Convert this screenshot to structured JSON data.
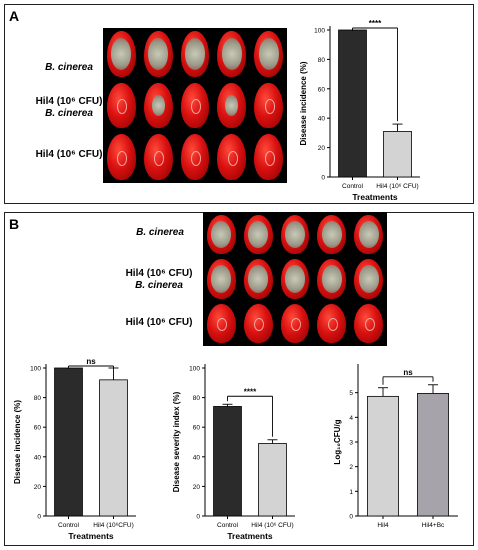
{
  "panels": {
    "a": {
      "letter": "A",
      "rows": [
        {
          "line1": "B. cinerea",
          "line2": "",
          "italic1": true
        },
        {
          "line1": "Hil4 (10⁶ CFU)",
          "line2": "B. cinerea",
          "italic1": false
        },
        {
          "line1": "Hil4 (10⁶ CFU)",
          "line2": "",
          "italic1": false
        }
      ]
    },
    "b": {
      "letter": "B",
      "rows": [
        {
          "line1": "B. cinerea",
          "line2": "",
          "italic1": true
        },
        {
          "line1": "Hil4 (10⁶ CFU)",
          "line2": "B. cinerea",
          "italic1": false
        },
        {
          "line1": "Hil4 (10⁶ CFU)",
          "line2": "",
          "italic1": false
        }
      ]
    }
  },
  "chart_data": [
    {
      "id": "a-incidence",
      "type": "bar",
      "categories": [
        "Control",
        "Hil4 (10⁶ CFU)"
      ],
      "values": [
        100,
        31
      ],
      "errors": [
        0,
        5
      ],
      "colors": [
        "#2b2b2b",
        "#d3d3d3"
      ],
      "ylim": [
        0,
        100
      ],
      "yticks": [
        0,
        20,
        40,
        60,
        80,
        100
      ],
      "ylabel": "Disease incidence (%)",
      "xlabel": "Treatments",
      "annotation": "****"
    },
    {
      "id": "b-incidence",
      "type": "bar",
      "categories": [
        "Control",
        "Hil4 (10⁶CFU)"
      ],
      "values": [
        100,
        92
      ],
      "errors": [
        0,
        8
      ],
      "colors": [
        "#2b2b2b",
        "#d3d3d3"
      ],
      "ylim": [
        0,
        100
      ],
      "yticks": [
        0,
        20,
        40,
        60,
        80,
        100
      ],
      "ylabel": "Disease incidence (%)",
      "xlabel": "Treatments",
      "annotation": "ns"
    },
    {
      "id": "b-severity",
      "type": "bar",
      "categories": [
        "Control",
        "Hil4 (10⁶ CFU)"
      ],
      "values": [
        74,
        49
      ],
      "errors": [
        1.5,
        2.5
      ],
      "colors": [
        "#2b2b2b",
        "#d3d3d3"
      ],
      "ylim": [
        0,
        100
      ],
      "yticks": [
        0,
        20,
        40,
        60,
        80,
        100
      ],
      "ylabel": "Disease severity index (%)",
      "xlabel": "Treatments",
      "annotation": "****"
    },
    {
      "id": "b-log",
      "type": "bar",
      "categories": [
        "Hil4",
        "Hil4+Bc"
      ],
      "values": [
        4.85,
        4.97
      ],
      "errors": [
        0.35,
        0.35
      ],
      "colors": [
        "#d3d3d3",
        "#a7a3ab"
      ],
      "ylim": [
        0,
        6
      ],
      "yticks": [
        0,
        1,
        2,
        3,
        4,
        5
      ],
      "ylabel": "Log₁₀CFU/g",
      "xlabel": "",
      "annotation": "ns"
    }
  ]
}
